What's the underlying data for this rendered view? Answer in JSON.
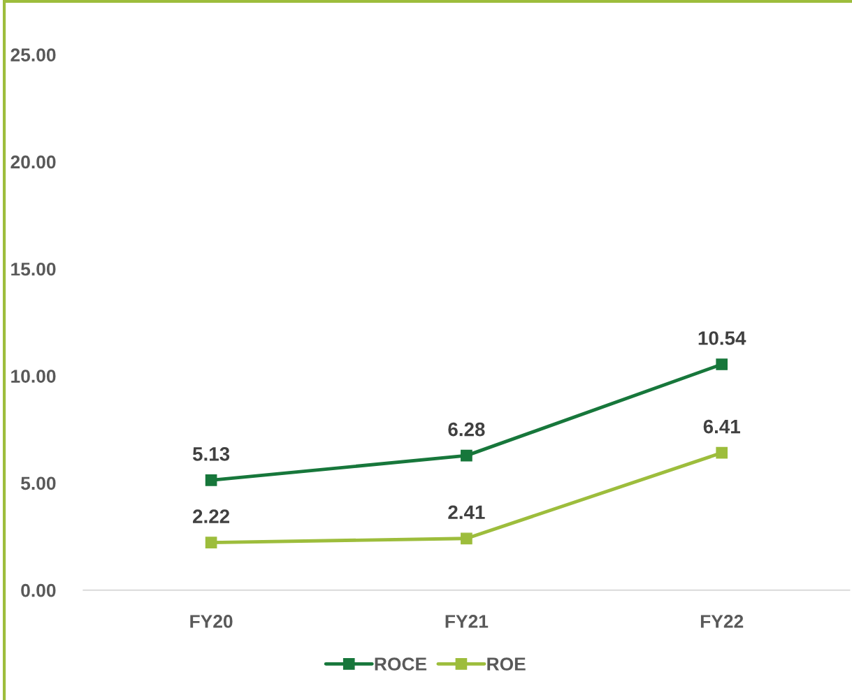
{
  "chart_data": {
    "type": "line",
    "categories": [
      "FY20",
      "FY21",
      "FY22"
    ],
    "series": [
      {
        "name": "ROCE",
        "color": "#17773b",
        "values": [
          5.13,
          6.28,
          10.54
        ]
      },
      {
        "name": "ROE",
        "color": "#9dbd3c",
        "values": [
          2.22,
          2.41,
          6.41
        ]
      }
    ],
    "ylim": [
      0,
      25
    ],
    "yticks": [
      {
        "value": 0,
        "label": "0.00"
      },
      {
        "value": 5,
        "label": "5.00"
      },
      {
        "value": 10,
        "label": "10.00"
      },
      {
        "value": 15,
        "label": "15.00"
      },
      {
        "value": 20,
        "label": "20.00"
      },
      {
        "value": 25,
        "label": "25.00"
      }
    ],
    "grid": false,
    "legend": "bottom",
    "marker": "square",
    "line_style": "solid",
    "data_labels": true
  }
}
